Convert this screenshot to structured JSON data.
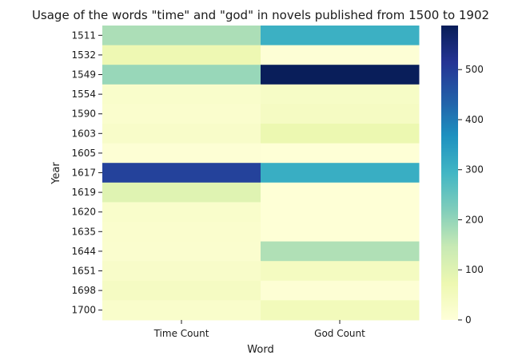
{
  "chart_data": {
    "type": "heatmap",
    "title": "Usage of the words \"time\" and \"god\" in novels published from 1500 to 1902",
    "xlabel": "Word",
    "ylabel": "Year",
    "x_categories": [
      "Time Count",
      "God Count"
    ],
    "y_categories": [
      "1511",
      "1532",
      "1549",
      "1554",
      "1590",
      "1603",
      "1605",
      "1617",
      "1619",
      "1620",
      "1635",
      "1644",
      "1651",
      "1698",
      "1700"
    ],
    "values": [
      [
        175,
        305
      ],
      [
        70,
        8
      ],
      [
        195,
        585
      ],
      [
        25,
        35
      ],
      [
        22,
        40
      ],
      [
        30,
        75
      ],
      [
        10,
        5
      ],
      [
        490,
        310
      ],
      [
        100,
        5
      ],
      [
        25,
        5
      ],
      [
        22,
        5
      ],
      [
        20,
        170
      ],
      [
        30,
        45
      ],
      [
        40,
        10
      ],
      [
        25,
        55
      ]
    ],
    "colorbar": {
      "min": 0,
      "max": 588,
      "ticks": [
        0,
        100,
        200,
        300,
        400,
        500
      ],
      "colormap": [
        "#ffffd9",
        "#edf8b1",
        "#c7e9b4",
        "#7fcdbb",
        "#41b6c4",
        "#1d91c0",
        "#225ea8",
        "#253494",
        "#081d58"
      ]
    }
  }
}
